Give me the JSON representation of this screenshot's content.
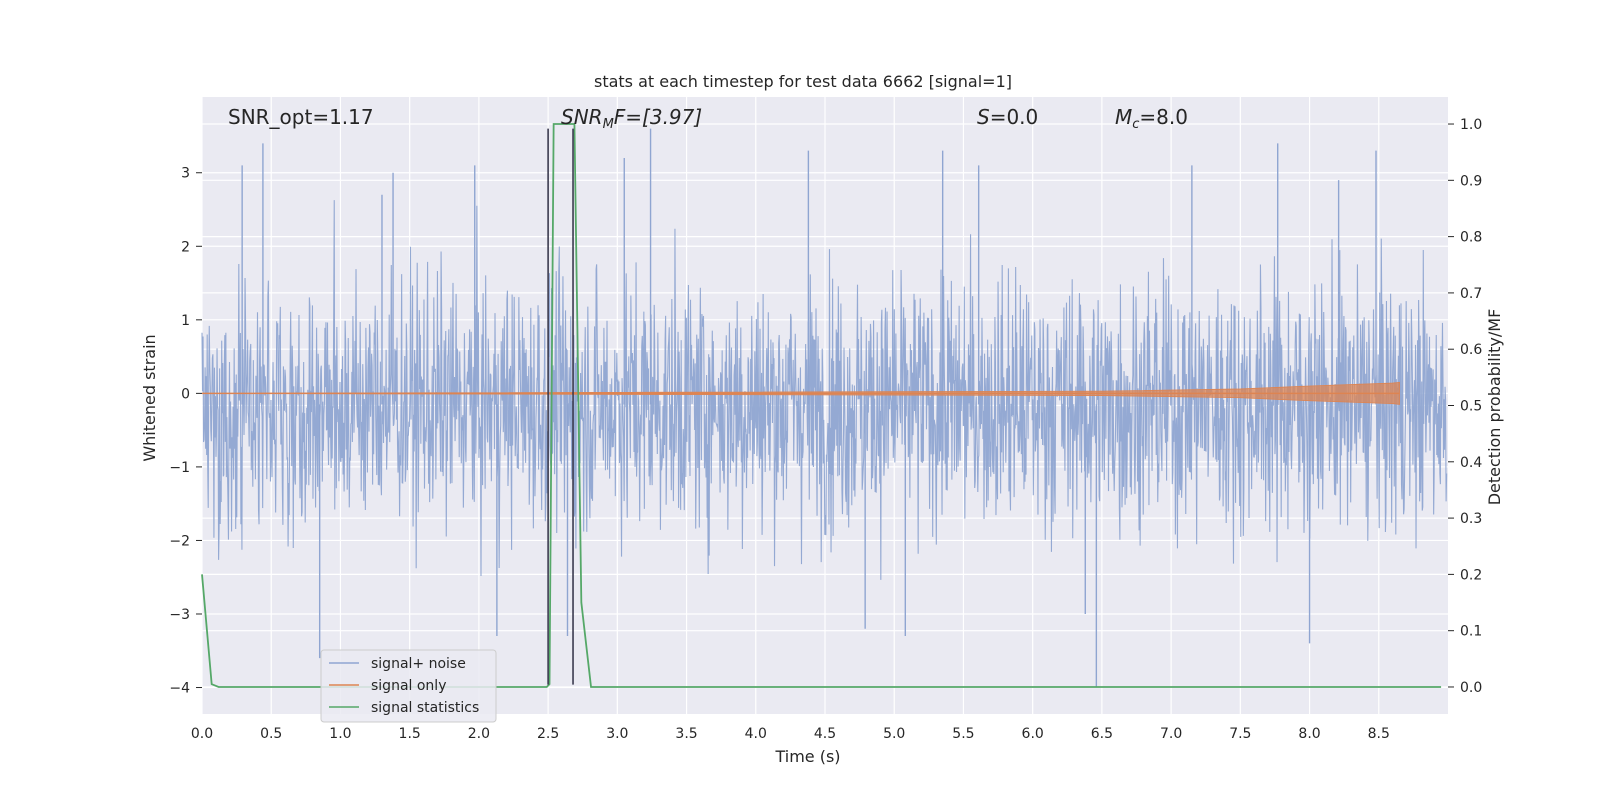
{
  "chart_data": {
    "type": "line",
    "title": "stats at each timestep for test data 6662 [signal=1]",
    "xlabel": "Time (s)",
    "ylabel": "Whitened strain",
    "y2label": "Detection probability/MF",
    "xlim": [
      0.0,
      9.0
    ],
    "ylim": [
      -4.36,
      4.03
    ],
    "y2lim": [
      -0.048,
      1.048
    ],
    "xticks": [
      0.0,
      0.5,
      1.0,
      1.5,
      2.0,
      2.5,
      3.0,
      3.5,
      4.0,
      4.5,
      5.0,
      5.5,
      6.0,
      6.5,
      7.0,
      7.5,
      8.0,
      8.5
    ],
    "xtick_labels": [
      "0.0",
      "0.5",
      "1.0",
      "1.5",
      "2.0",
      "2.5",
      "3.0",
      "3.5",
      "4.0",
      "4.5",
      "5.0",
      "5.5",
      "6.0",
      "6.5",
      "7.0",
      "7.5",
      "8.0",
      "8.5"
    ],
    "yticks": [
      -4,
      -3,
      -2,
      -1,
      0,
      1,
      2,
      3
    ],
    "ytick_labels": [
      "−4",
      "−3",
      "−2",
      "−1",
      "0",
      "1",
      "2",
      "3"
    ],
    "y2ticks": [
      0.0,
      0.1,
      0.2,
      0.3,
      0.4,
      0.5,
      0.6,
      0.7,
      0.8,
      0.9,
      1.0
    ],
    "y2tick_labels": [
      "0.0",
      "0.1",
      "0.2",
      "0.3",
      "0.4",
      "0.5",
      "0.6",
      "0.7",
      "0.8",
      "0.9",
      "1.0"
    ],
    "grid": true,
    "legend_position": "lower-left",
    "annotations": {
      "snr_opt": "SNR_opt=1.17",
      "snr_mf_main": "SNR",
      "snr_mf_sub": "M",
      "snr_mf_rest": "F=[3.97]",
      "s_main": "S",
      "s_rest": "=0.0",
      "mc_main": "M",
      "mc_sub": "c",
      "mc_rest": "=8.0"
    },
    "series": [
      {
        "name": "signal+ noise",
        "color": "#8fa5d1",
        "x_start": 0.0,
        "x_end": 8.99,
        "typical_envelope": [
          -1.75,
          1.45
        ],
        "extreme_peaks": [
          [
            0.29,
            3.1
          ],
          [
            0.44,
            3.4
          ],
          [
            0.85,
            -3.6
          ],
          [
            1.3,
            2.7
          ],
          [
            1.38,
            3.0
          ],
          [
            1.97,
            3.1
          ],
          [
            2.13,
            -3.3
          ],
          [
            2.64,
            -3.3
          ],
          [
            3.05,
            3.2
          ],
          [
            3.24,
            3.6
          ],
          [
            4.38,
            3.3
          ],
          [
            4.79,
            -3.2
          ],
          [
            5.08,
            -3.3
          ],
          [
            5.35,
            3.3
          ],
          [
            5.61,
            3.1
          ],
          [
            6.38,
            -3.0
          ],
          [
            6.46,
            -4.0
          ],
          [
            7.15,
            3.1
          ],
          [
            7.77,
            3.4
          ],
          [
            8.0,
            -3.4
          ],
          [
            8.21,
            2.9
          ],
          [
            8.48,
            3.3
          ]
        ]
      },
      {
        "name": "signal only",
        "color": "#dd8452",
        "x": [
          0.0,
          6.5,
          7.5,
          8.0,
          8.6,
          8.65
        ],
        "envelope": [
          0.0,
          0.03,
          0.06,
          0.1,
          0.14,
          0.15
        ]
      },
      {
        "name": "signal statistics",
        "color": "#55a868",
        "x": [
          0.0,
          0.07,
          0.12,
          2.49,
          2.51,
          2.54,
          2.67,
          2.69,
          2.74,
          2.81,
          8.95
        ],
        "y2": [
          0.2,
          0.005,
          0.0,
          0.0,
          0.005,
          1.0,
          1.0,
          1.0,
          0.15,
          0.0,
          0.0
        ]
      }
    ],
    "vertical_markers": [
      {
        "x": 2.5,
        "from_y": -3.96,
        "to_y": 3.6,
        "color": "#3b3b4f"
      },
      {
        "x": 2.68,
        "from_y": -3.96,
        "to_y": 3.6,
        "color": "#3b3b4f"
      }
    ]
  }
}
